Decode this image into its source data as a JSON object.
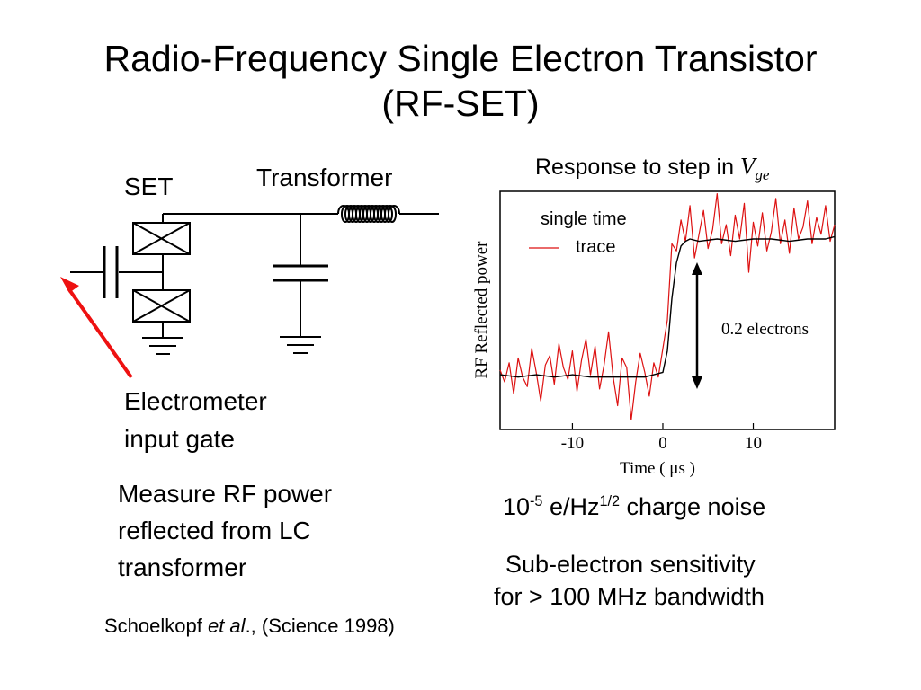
{
  "slide": {
    "title_line1": "Radio-Frequency Single Electron Transistor",
    "title_line2": "(RF-SET)"
  },
  "circuit": {
    "set_label": "SET",
    "transformer_label": "Transformer",
    "gate_label_line1": "Electrometer",
    "gate_label_line2": "input gate",
    "arrow_color": "#ee1111"
  },
  "description": {
    "line1": "Measure RF power",
    "line2": "reflected from LC",
    "line3": "transformer"
  },
  "citation": {
    "author": "Schoelkopf ",
    "etal": "et al",
    "rest": "., (Science 1998)"
  },
  "chart_data": {
    "type": "line",
    "title_text": "Response to step in ",
    "title_var": "V",
    "title_sub": "ge",
    "xlabel": "Time ( μs )",
    "ylabel": "RF Reflected power",
    "xlim": [
      -18,
      19
    ],
    "ylim": [
      0,
      1
    ],
    "x_ticks": [
      -10,
      0,
      10
    ],
    "x_tick_labels": [
      "-10",
      "0",
      "10"
    ],
    "legend": {
      "line1": "single time",
      "line2": "trace",
      "placement": "top-left"
    },
    "annotation": "0.2 electrons",
    "colors": {
      "single_trace": "#dd1111",
      "average": "#000000"
    },
    "series": [
      {
        "name": "single time trace",
        "x": [
          -18,
          -17.5,
          -17,
          -16.5,
          -16,
          -15.5,
          -15,
          -14.5,
          -14,
          -13.5,
          -13,
          -12.5,
          -12,
          -11.5,
          -11,
          -10.5,
          -10,
          -9.5,
          -9,
          -8.5,
          -8,
          -7.5,
          -7,
          -6.5,
          -6,
          -5.5,
          -5,
          -4.5,
          -4,
          -3.5,
          -3,
          -2.5,
          -2,
          -1.5,
          -1,
          -0.5,
          0,
          0.5,
          1,
          1.5,
          2,
          2.5,
          3,
          3.5,
          4,
          4.5,
          5,
          5.5,
          6,
          6.5,
          7,
          7.5,
          8,
          8.5,
          9,
          9.5,
          10,
          10.5,
          11,
          11.5,
          12,
          12.5,
          13,
          13.5,
          14,
          14.5,
          15,
          15.5,
          16,
          16.5,
          17,
          17.5,
          18,
          18.5,
          19
        ],
        "values": [
          0.25,
          0.2,
          0.28,
          0.15,
          0.3,
          0.22,
          0.18,
          0.34,
          0.24,
          0.12,
          0.27,
          0.31,
          0.19,
          0.36,
          0.26,
          0.21,
          0.33,
          0.16,
          0.29,
          0.38,
          0.23,
          0.35,
          0.17,
          0.27,
          0.41,
          0.22,
          0.1,
          0.3,
          0.26,
          0.04,
          0.2,
          0.32,
          0.24,
          0.14,
          0.28,
          0.22,
          0.34,
          0.46,
          0.78,
          0.75,
          0.88,
          0.79,
          0.94,
          0.72,
          0.82,
          0.92,
          0.76,
          0.84,
          0.99,
          0.78,
          0.86,
          0.73,
          0.9,
          0.8,
          0.95,
          0.66,
          0.87,
          0.77,
          0.91,
          0.75,
          0.83,
          0.97,
          0.78,
          0.88,
          0.74,
          0.93,
          0.8,
          0.85,
          0.96,
          0.78,
          0.89,
          0.82,
          0.94,
          0.79,
          0.86
        ]
      },
      {
        "name": "average",
        "x": [
          -18,
          -16,
          -14,
          -12,
          -10,
          -8,
          -6,
          -4,
          -2,
          -1,
          0,
          0.5,
          1,
          1.5,
          2,
          2.5,
          3,
          4,
          6,
          8,
          10,
          12,
          14,
          16,
          18,
          19
        ],
        "values": [
          0.23,
          0.22,
          0.23,
          0.22,
          0.23,
          0.22,
          0.22,
          0.22,
          0.22,
          0.23,
          0.24,
          0.33,
          0.55,
          0.7,
          0.77,
          0.79,
          0.8,
          0.79,
          0.8,
          0.79,
          0.8,
          0.8,
          0.79,
          0.8,
          0.8,
          0.81
        ]
      }
    ]
  },
  "notes": {
    "noise_pre": "10",
    "noise_exp1": "-5",
    "noise_mid": " e/Hz",
    "noise_exp2": "1/2",
    "noise_post": " charge noise",
    "sens_line1": "Sub-electron sensitivity",
    "sens_line2": "for > 100 MHz bandwidth"
  }
}
